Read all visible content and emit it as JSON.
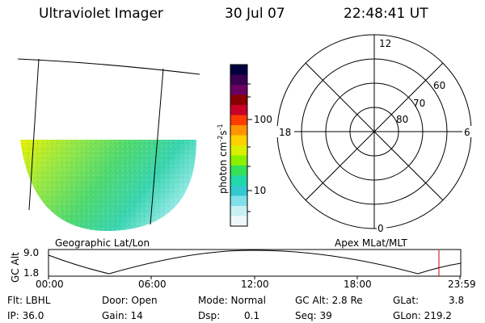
{
  "header": {
    "title": "Ultraviolet Imager",
    "date": "30 Jul 07",
    "time": "22:48:41 UT"
  },
  "geo_map": {
    "label": "Geographic Lat/Lon"
  },
  "colorbar": {
    "unit_label": "photon cm-2s-1",
    "ticks": [
      "100",
      "10"
    ],
    "colors": [
      "#000040",
      "#3a0050",
      "#6a0060",
      "#8a0000",
      "#c8002a",
      "#ff3c00",
      "#ff9400",
      "#ffd000",
      "#d8f000",
      "#8af000",
      "#36e05a",
      "#20d8a8",
      "#34c8d0",
      "#7fe0e8",
      "#c8f0f4",
      "#eef8f8"
    ]
  },
  "polar_plot": {
    "label": "Apex MLat/MLT",
    "mlt_labels": {
      "top": "12",
      "left": "18",
      "right": "6",
      "bottom": "0"
    },
    "lat_labels": [
      "60",
      "70",
      "80"
    ]
  },
  "altitude_panel": {
    "ylabel": "GC Alt",
    "yticks": [
      "9.0",
      "1.8"
    ],
    "xticks": [
      "00:00",
      "06:00",
      "12:00",
      "18:00",
      "23:59"
    ],
    "marker_time": "22:48",
    "marker_color": "#cc0000"
  },
  "info": {
    "row1": {
      "flt": "Flt: LBHL",
      "door": "Door: Open",
      "mode": "Mode: Normal",
      "gc_alt": "GC Alt: 2.8 Re",
      "glat_label": "GLat:",
      "glat_value": "3.8"
    },
    "row2": {
      "ip": "IP: 36.0",
      "gain": "Gain: 14",
      "dsp_label": "Dsp:",
      "dsp_value": "0.1",
      "seq": "Seq: 39",
      "glon": "GLon: 219.2"
    }
  }
}
